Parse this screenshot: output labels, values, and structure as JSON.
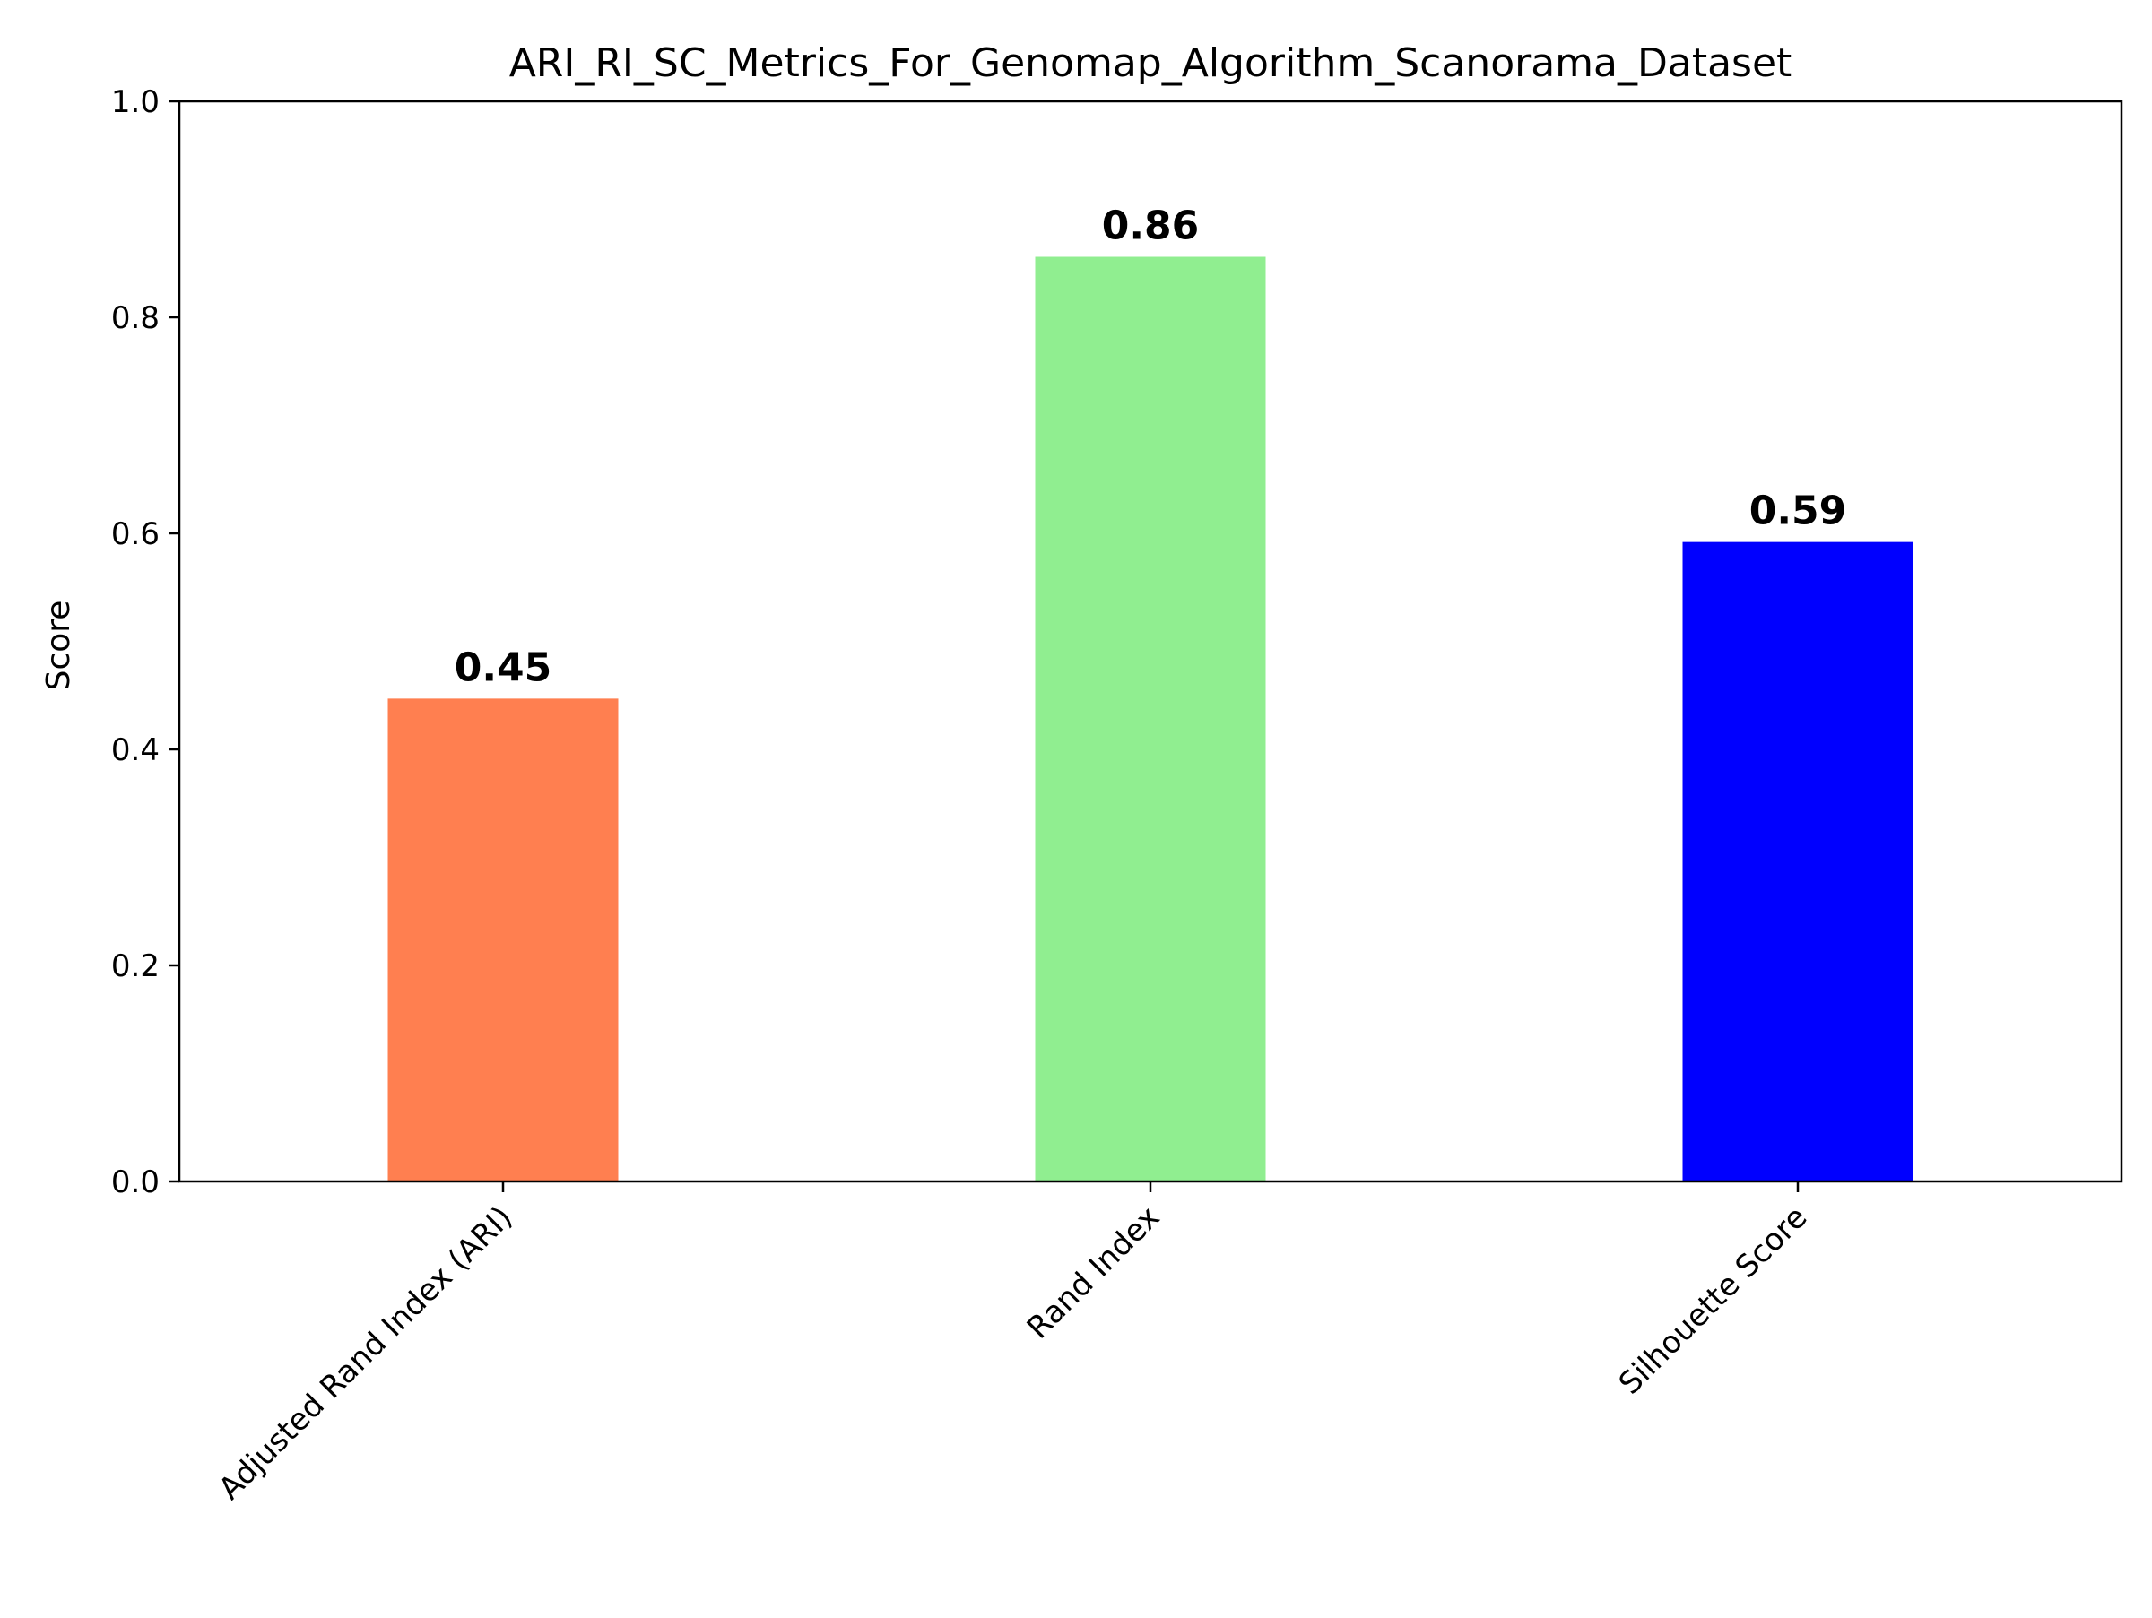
{
  "chart_data": {
    "type": "bar",
    "title": "ARI_RI_SC_Metrics_For_Genomap_Algorithm_Scanorama_Dataset",
    "xlabel": "",
    "ylabel": "Score",
    "categories": [
      "Adjusted Rand Index (ARI)",
      "Rand Index",
      "Silhouette Score"
    ],
    "values": [
      0.447,
      0.856,
      0.592
    ],
    "value_labels": [
      "0.45",
      "0.86",
      "0.59"
    ],
    "colors": [
      "#ff7f50",
      "#90ee90",
      "#0000ff"
    ],
    "ylim": [
      0,
      1.0
    ],
    "yticks": [
      0.0,
      0.2,
      0.4,
      0.6,
      0.8,
      1.0
    ],
    "ytick_labels": [
      "0.0",
      "0.2",
      "0.4",
      "0.6",
      "0.8",
      "1.0"
    ],
    "grid": false,
    "legend": "none"
  }
}
